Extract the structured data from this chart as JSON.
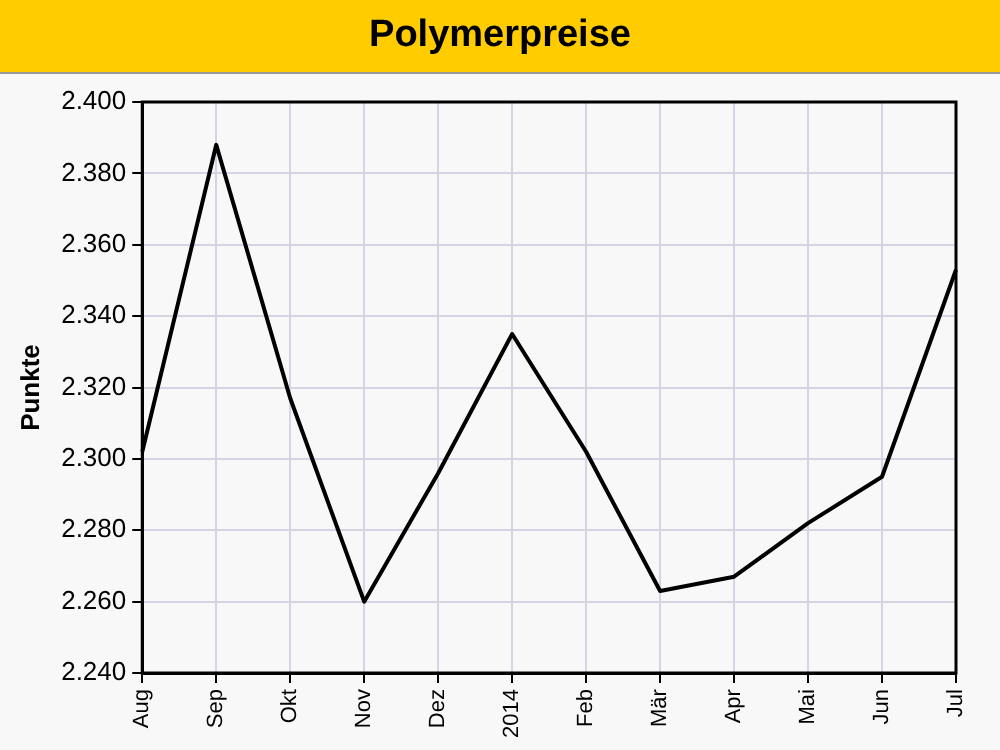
{
  "chart_data": {
    "type": "line",
    "title": "Polymerpreise",
    "ylabel": "Punkte",
    "categories": [
      "Aug",
      "Sep",
      "Okt",
      "Nov",
      "Dez",
      "2014",
      "Feb",
      "Mär",
      "Apr",
      "Mai",
      "Jun",
      "Jul"
    ],
    "series": [
      {
        "color": "#000000",
        "values": [
          2302,
          2388,
          2317,
          2260,
          2296,
          2335,
          2302,
          2263,
          2267,
          2282,
          2295,
          2353
        ]
      }
    ],
    "ylim": [
      2240,
      2400
    ],
    "yticks": [
      {
        "value": 2240,
        "label": "2.240"
      },
      {
        "value": 2260,
        "label": "2.260"
      },
      {
        "value": 2280,
        "label": "2.280"
      },
      {
        "value": 2300,
        "label": "2.300"
      },
      {
        "value": 2320,
        "label": "2.320"
      },
      {
        "value": 2340,
        "label": "2.340"
      },
      {
        "value": 2360,
        "label": "2.360"
      },
      {
        "value": 2380,
        "label": "2.380"
      },
      {
        "value": 2400,
        "label": "2.400"
      }
    ],
    "grid": true,
    "marker": "none",
    "line_style": "solid"
  }
}
